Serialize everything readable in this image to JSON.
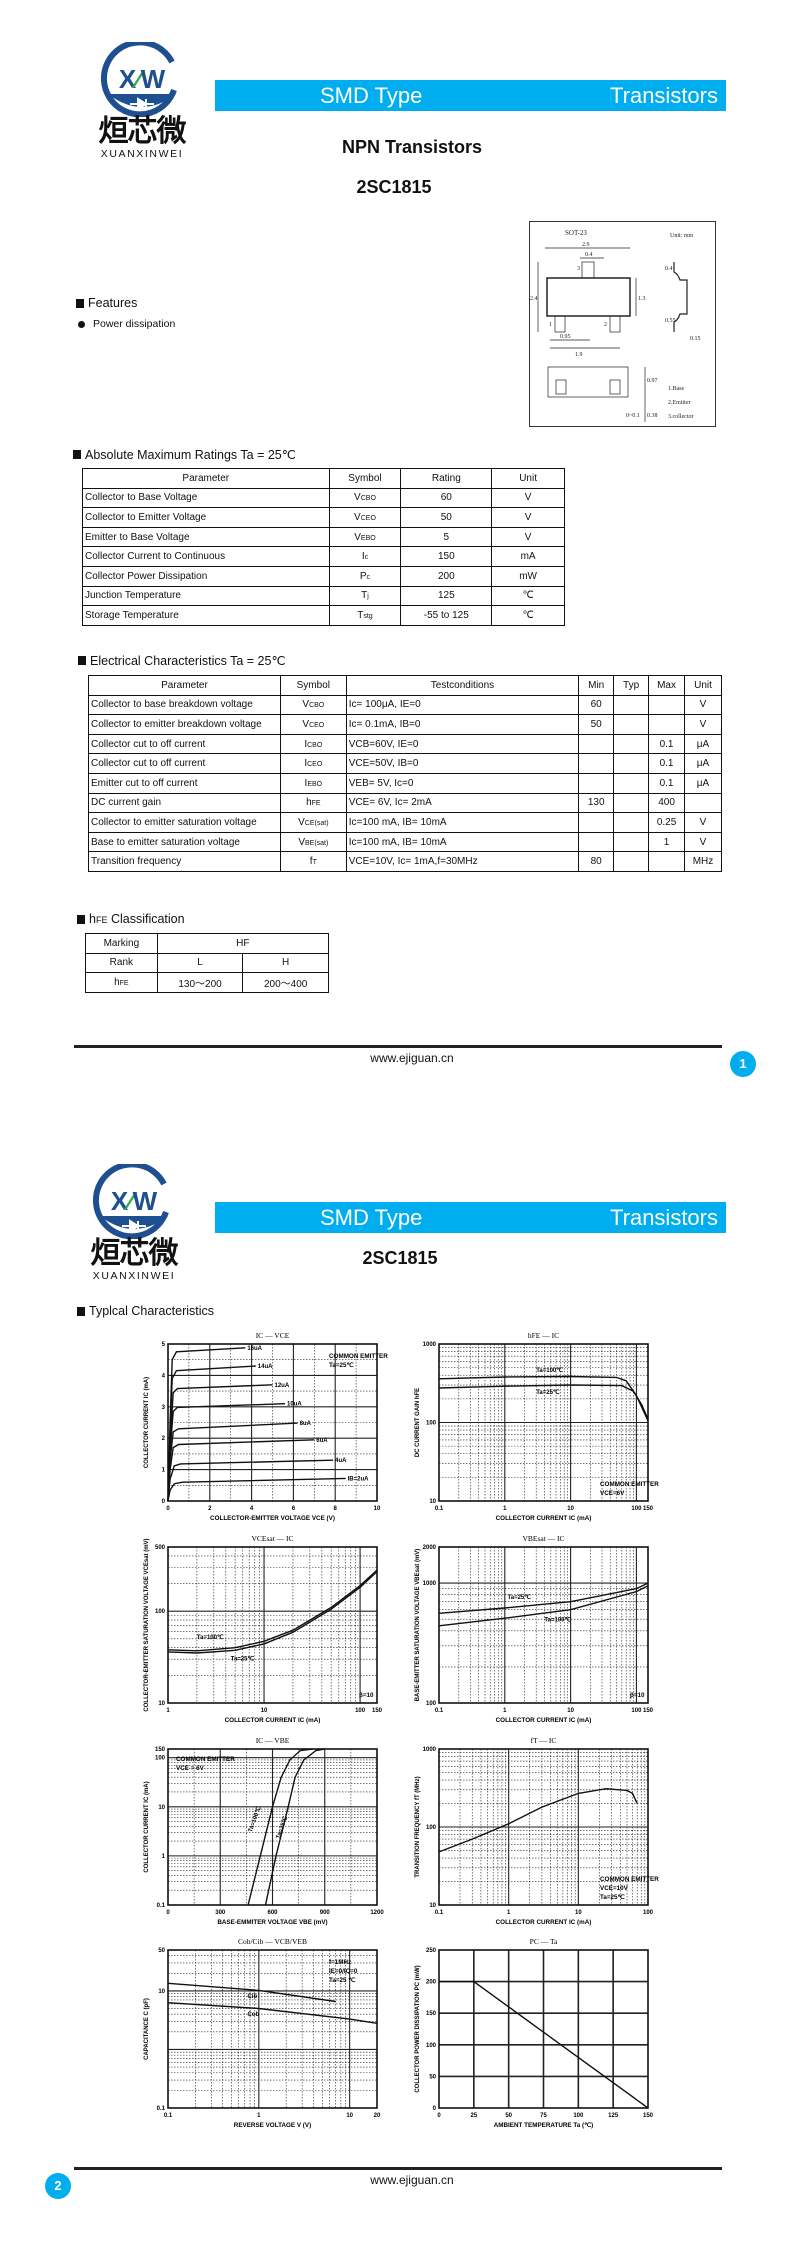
{
  "brand": {
    "logo_cn": "烜芯微",
    "logo_en": "XUANXINWEI",
    "logo_mark": "XW",
    "color_brand": "#00aeef",
    "color_logo": "#1d4f91"
  },
  "banner": {
    "left": "SMD Type",
    "right": "Transistors"
  },
  "page1": {
    "title": "NPN  Transistors",
    "part": "2SC1815",
    "features_heading": "Features",
    "features": [
      "Power dissipation"
    ],
    "package": {
      "name": "SOT-23",
      "unit": "Unit: mm",
      "dims": [
        "2.9",
        "0.4",
        "2.4",
        "1.3",
        "0.95",
        "1.9",
        "0.4",
        "0.55",
        "0.15",
        "0.97",
        "0~0.1",
        "0.38"
      ],
      "pins": [
        "1.Base",
        "2.Emitter",
        "3.collector"
      ],
      "pin_numbers": [
        "1",
        "2",
        "3"
      ]
    },
    "abs_max": {
      "heading": "Absolute Maximum Ratings Ta = 25℃",
      "headers": [
        "Parameter",
        "Symbol",
        "Rating",
        "Unit"
      ],
      "rows": [
        [
          "Collector to Base Voltage",
          [
            "V",
            "CBO"
          ],
          "60",
          "V"
        ],
        [
          "Collector to Emitter Voltage",
          [
            "V",
            "CEO"
          ],
          "50",
          "V"
        ],
        [
          "Emitter to Base Voltage",
          [
            "V",
            "EBO"
          ],
          "5",
          "V"
        ],
        [
          "Collector Current  to Continuous",
          [
            "I",
            "c"
          ],
          "150",
          "mA"
        ],
        [
          "Collector Power Dissipation",
          [
            "P",
            "c"
          ],
          "200",
          "mW"
        ],
        [
          "Junction Temperature",
          [
            "T",
            "j"
          ],
          "125",
          "℃"
        ],
        [
          "Storage Temperature",
          [
            "T",
            "stg"
          ],
          "-55 to 125",
          "℃"
        ]
      ]
    },
    "elec": {
      "heading": "Electrical Characteristics Ta = 25℃",
      "headers": [
        "Parameter",
        "Symbol",
        "Testconditions",
        "Min",
        "Typ",
        "Max",
        "Unit"
      ],
      "rows": [
        [
          "Collector to base breakdown voltage",
          [
            "V",
            "CBO"
          ],
          "Ic= 100μA, IE=0",
          "60",
          "",
          "",
          "V"
        ],
        [
          "Collector to emitter breakdown voltage",
          [
            "V",
            "CEO"
          ],
          "Ic= 0.1mA, IB=0",
          "50",
          "",
          "",
          "V"
        ],
        [
          "Collector cut to off current",
          [
            "I",
            "CBO"
          ],
          "VCB=60V, IE=0",
          "",
          "",
          "0.1",
          "μA"
        ],
        [
          "Collector cut to off current",
          [
            "I",
            "CEO"
          ],
          "VCE=50V, IB=0",
          "",
          "",
          "0.1",
          "μA"
        ],
        [
          "Emitter cut to off current",
          [
            "I",
            "EBO"
          ],
          "VEB= 5V, Ic=0",
          "",
          "",
          "0.1",
          "μA"
        ],
        [
          "DC current gain",
          [
            "h",
            "FE"
          ],
          "VCE= 6V, Ic= 2mA",
          "130",
          "",
          "400",
          ""
        ],
        [
          "Collector to emitter saturation voltage",
          [
            "V",
            "CE(sat)"
          ],
          "Ic=100 mA, IB= 10mA",
          "",
          "",
          "0.25",
          "V"
        ],
        [
          "Base to emitter saturation voltage",
          [
            "V",
            "BE(sat)"
          ],
          "Ic=100 mA, IB= 10mA",
          "",
          "",
          "1",
          "V"
        ],
        [
          "Transition frequency",
          [
            "f",
            "T"
          ],
          "VCE=10V, Ic= 1mA,f=30MHz",
          "80",
          "",
          "",
          "MHz"
        ]
      ]
    },
    "hfe": {
      "heading_main": "h",
      "heading_sub": "FE",
      "heading_rest": " Classification",
      "marking_label": "Marking",
      "marking": "HF",
      "rank_label": "Rank",
      "ranks": [
        "L",
        "H"
      ],
      "hfe_label": "h",
      "hfe_label_sub": "FE",
      "ranges": [
        "130～200",
        "200～400"
      ]
    },
    "footer_url": "www.ejiguan.cn",
    "page_number": "1"
  },
  "page2": {
    "part": "2SC1815",
    "heading": "Typlcal Characteristics",
    "footer_url": "www.ejiguan.cn",
    "page_number": "2"
  },
  "chart_data": [
    {
      "type": "line",
      "title": "IC — VCE",
      "xlabel": "COLLECTOR-EMITTER VOLTAGE  VCE  (V)",
      "ylabel": "COLLECTOR CURRENT  IC  (mA)",
      "xscale": "linear",
      "yscale": "linear",
      "xlim": [
        0,
        10
      ],
      "ylim": [
        0,
        5
      ],
      "xticks": [
        0,
        2,
        4,
        6,
        8,
        10
      ],
      "yticks": [
        0,
        1,
        2,
        3,
        4,
        5
      ],
      "grid": true,
      "annotation": [
        "COMMON EMITTER",
        "Ta=25℃"
      ],
      "annotation_pos": "top-right",
      "series": [
        {
          "name": "16uA",
          "points": [
            [
              0,
              0
            ],
            [
              0.1,
              2.5
            ],
            [
              0.2,
              4.5
            ],
            [
              0.4,
              4.75
            ],
            [
              3.7,
              4.88
            ]
          ]
        },
        {
          "name": "14uA",
          "points": [
            [
              0,
              0
            ],
            [
              0.1,
              2.2
            ],
            [
              0.2,
              3.9
            ],
            [
              0.4,
              4.15
            ],
            [
              4.2,
              4.3
            ]
          ]
        },
        {
          "name": "12uA",
          "points": [
            [
              0,
              0
            ],
            [
              0.1,
              1.9
            ],
            [
              0.25,
              3.45
            ],
            [
              0.45,
              3.58
            ],
            [
              5.0,
              3.7
            ]
          ]
        },
        {
          "name": "10uA",
          "points": [
            [
              0,
              0
            ],
            [
              0.1,
              1.6
            ],
            [
              0.25,
              2.85
            ],
            [
              0.45,
              2.98
            ],
            [
              5.6,
              3.1
            ]
          ]
        },
        {
          "name": "8uA",
          "points": [
            [
              0,
              0
            ],
            [
              0.1,
              1.3
            ],
            [
              0.25,
              2.2
            ],
            [
              0.5,
              2.3
            ],
            [
              6.2,
              2.48
            ]
          ]
        },
        {
          "name": "6uA",
          "points": [
            [
              0,
              0
            ],
            [
              0.1,
              1.0
            ],
            [
              0.25,
              1.7
            ],
            [
              0.5,
              1.8
            ],
            [
              7.0,
              1.95
            ]
          ]
        },
        {
          "name": "4uA",
          "points": [
            [
              0,
              0
            ],
            [
              0.1,
              0.7
            ],
            [
              0.3,
              1.12
            ],
            [
              0.6,
              1.18
            ],
            [
              7.9,
              1.3
            ]
          ]
        },
        {
          "name": "IB=2uA",
          "points": [
            [
              0,
              0
            ],
            [
              0.1,
              0.35
            ],
            [
              0.3,
              0.55
            ],
            [
              0.7,
              0.6
            ],
            [
              8.5,
              0.72
            ]
          ]
        }
      ]
    },
    {
      "type": "line",
      "title": "hFE — IC",
      "xlabel": "COLLECTOR CURRENT  IC  (mA)",
      "ylabel": "DC CURRENT GAIN  hFE",
      "xscale": "log",
      "yscale": "log",
      "xlim": [
        0.1,
        150
      ],
      "ylim": [
        10,
        1000
      ],
      "xticks": [
        0.1,
        1,
        10,
        100,
        150
      ],
      "yticks": [
        10,
        100,
        1000
      ],
      "grid": true,
      "annotation": [
        "COMMON EMITTER",
        "VCE=6V"
      ],
      "annotation_pos": "bottom-right",
      "series": [
        {
          "name": "Ta=100℃",
          "label_at": [
            3,
            440
          ],
          "points": [
            [
              0.1,
              360
            ],
            [
              1,
              380
            ],
            [
              10,
              385
            ],
            [
              50,
              375
            ],
            [
              70,
              340
            ],
            [
              100,
              220
            ],
            [
              150,
              105
            ]
          ]
        },
        {
          "name": "Ta=25℃",
          "label_at": [
            3,
            230
          ],
          "points": [
            [
              0.1,
              275
            ],
            [
              1,
              290
            ],
            [
              10,
              300
            ],
            [
              60,
              295
            ],
            [
              90,
              250
            ],
            [
              120,
              170
            ],
            [
              150,
              110
            ]
          ]
        }
      ]
    },
    {
      "type": "line",
      "title": "VCEsat — IC",
      "xlabel": "COLLECTOR CURRENT  IC  (mA)",
      "ylabel": "COLLECTOR-EMITTER SATURATION VOLTAGE  VCEsat  (mV)",
      "xscale": "log",
      "yscale": "log",
      "xlim": [
        1,
        150
      ],
      "ylim": [
        10,
        500
      ],
      "xticks": [
        1,
        10,
        100,
        150
      ],
      "yticks": [
        10,
        100,
        500
      ],
      "grid": true,
      "annotation": [
        "β=10"
      ],
      "annotation_pos": "bottom-right",
      "series": [
        {
          "name": "Ta=100℃",
          "label_at": [
            2,
            50
          ],
          "points": [
            [
              1,
              38
            ],
            [
              2,
              37
            ],
            [
              5,
              40
            ],
            [
              10,
              47
            ],
            [
              20,
              62
            ],
            [
              50,
              110
            ],
            [
              100,
              190
            ],
            [
              150,
              280
            ]
          ]
        },
        {
          "name": "Ta=25℃",
          "label_at": [
            4.5,
            29
          ],
          "points": [
            [
              1,
              36
            ],
            [
              2,
              35
            ],
            [
              5,
              37.5
            ],
            [
              10,
              44
            ],
            [
              20,
              59
            ],
            [
              50,
              105
            ],
            [
              100,
              182
            ],
            [
              150,
              270
            ]
          ]
        }
      ]
    },
    {
      "type": "line",
      "title": "VBEsat — IC",
      "xlabel": "COLLECTOR CURRENT  IC  (mA)",
      "ylabel": "BASE-EMITTER SATURATION VOLTAGE  VBEsat  (mV)",
      "xscale": "log",
      "yscale": "log",
      "xlim": [
        0.1,
        150
      ],
      "ylim": [
        100,
        2000
      ],
      "xticks": [
        0.1,
        1,
        10,
        100,
        150
      ],
      "yticks": [
        100,
        1000,
        2000
      ],
      "grid": true,
      "annotation": [
        "β=10"
      ],
      "annotation_pos": "bottom-right",
      "series": [
        {
          "name": "Ta=25℃",
          "label_at": [
            1.1,
            740
          ],
          "points": [
            [
              0.1,
              560
            ],
            [
              1,
              620
            ],
            [
              10,
              700
            ],
            [
              100,
              900
            ],
            [
              150,
              1000
            ]
          ]
        },
        {
          "name": "Ta=100℃",
          "label_at": [
            4,
            480
          ],
          "points": [
            [
              0.1,
              440
            ],
            [
              1,
              510
            ],
            [
              10,
              600
            ],
            [
              100,
              850
            ],
            [
              150,
              950
            ]
          ]
        }
      ]
    },
    {
      "type": "line",
      "title": "IC — VBE",
      "xlabel": "BASE-EMMITER VOLTAGE  VBE  (mV)",
      "ylabel": "COLLECTOR CURRENT  IC  (mA)",
      "xscale": "linear",
      "yscale": "log",
      "xlim": [
        0,
        1200
      ],
      "ylim": [
        0.1,
        150
      ],
      "xticks": [
        0,
        300,
        600,
        900,
        1200
      ],
      "yticks": [
        0.1,
        1,
        10,
        100,
        150
      ],
      "grid": true,
      "annotation": [
        "COMMON EMITTER",
        "VCE = 6V"
      ],
      "annotation_pos": "top-left",
      "series": [
        {
          "name": "Ta=100℃",
          "label_at": [
            480,
            3
          ],
          "points": [
            [
              460,
              0.1
            ],
            [
              530,
              1
            ],
            [
              600,
              10
            ],
            [
              650,
              40
            ],
            [
              700,
              90
            ],
            [
              760,
              140
            ],
            [
              830,
              150
            ]
          ]
        },
        {
          "name": "Ta=25℃",
          "label_at": [
            640,
            2.2
          ],
          "points": [
            [
              560,
              0.1
            ],
            [
              620,
              1
            ],
            [
              690,
              10
            ],
            [
              730,
              40
            ],
            [
              780,
              90
            ],
            [
              850,
              140
            ],
            [
              900,
              150
            ]
          ]
        }
      ]
    },
    {
      "type": "line",
      "title": "fT — IC",
      "xlabel": "COLLECTOR CURRENT  IC  (mA)",
      "ylabel": "TRANSITION FREQUENCY  fT  (MHz)",
      "xscale": "log",
      "yscale": "log",
      "xlim": [
        0.1,
        100
      ],
      "ylim": [
        10,
        1000
      ],
      "xticks": [
        0.1,
        1,
        10,
        100
      ],
      "yticks": [
        10,
        100,
        1000
      ],
      "grid": true,
      "annotation": [
        "COMMON EMITTER",
        "VCE=10V",
        "Ta=25℃"
      ],
      "annotation_pos": "bottom-right",
      "series": [
        {
          "name": "",
          "points": [
            [
              0.1,
              48
            ],
            [
              0.3,
              70
            ],
            [
              1,
              110
            ],
            [
              3,
              180
            ],
            [
              10,
              270
            ],
            [
              25,
              310
            ],
            [
              50,
              295
            ],
            [
              60,
              270
            ],
            [
              70,
              200
            ]
          ]
        }
      ]
    },
    {
      "type": "line",
      "title": "Cob/Cib — VCB/VEB",
      "xlabel": "REVERSE  VOLTAGE  V  (V)",
      "ylabel": "CAPACITANCE  C  (pF)",
      "xscale": "log",
      "yscale": "log",
      "xlim": [
        0.1,
        20
      ],
      "ylim": [
        0.1,
        50
      ],
      "xticks": [
        0.1,
        1,
        10,
        20
      ],
      "yticks": [
        0.1,
        10,
        50
      ],
      "grid": true,
      "annotation": [
        "f=1MHz",
        "IE=0/IC=0",
        "Ta=25 ℃"
      ],
      "annotation_pos": "top-right",
      "series": [
        {
          "name": "Cib",
          "label_at": [
            0.75,
            7.5
          ],
          "points": [
            [
              0.1,
              13.5
            ],
            [
              1,
              10.2
            ],
            [
              7,
              6.6
            ]
          ]
        },
        {
          "name": "Cob",
          "label_at": [
            0.75,
            3.7
          ],
          "points": [
            [
              0.1,
              6.3
            ],
            [
              1,
              5.0
            ],
            [
              10,
              3.3
            ],
            [
              20,
              2.8
            ]
          ]
        }
      ]
    },
    {
      "type": "line",
      "title": "PC — Ta",
      "xlabel": "AMBIENT TEMPERATURE  Ta  (℃)",
      "ylabel": "COLLECTOR POWER DISSIPATION  PC  (mW)",
      "xscale": "linear",
      "yscale": "linear",
      "xlim": [
        0,
        150
      ],
      "ylim": [
        0,
        250
      ],
      "xticks": [
        0,
        25,
        50,
        75,
        100,
        125,
        150
      ],
      "yticks": [
        0,
        50,
        100,
        150,
        200,
        250
      ],
      "grid": true,
      "annotation": [],
      "annotation_pos": "",
      "series": [
        {
          "name": "",
          "points": [
            [
              0,
              200
            ],
            [
              25,
              200
            ],
            [
              150,
              0
            ]
          ]
        }
      ]
    }
  ]
}
